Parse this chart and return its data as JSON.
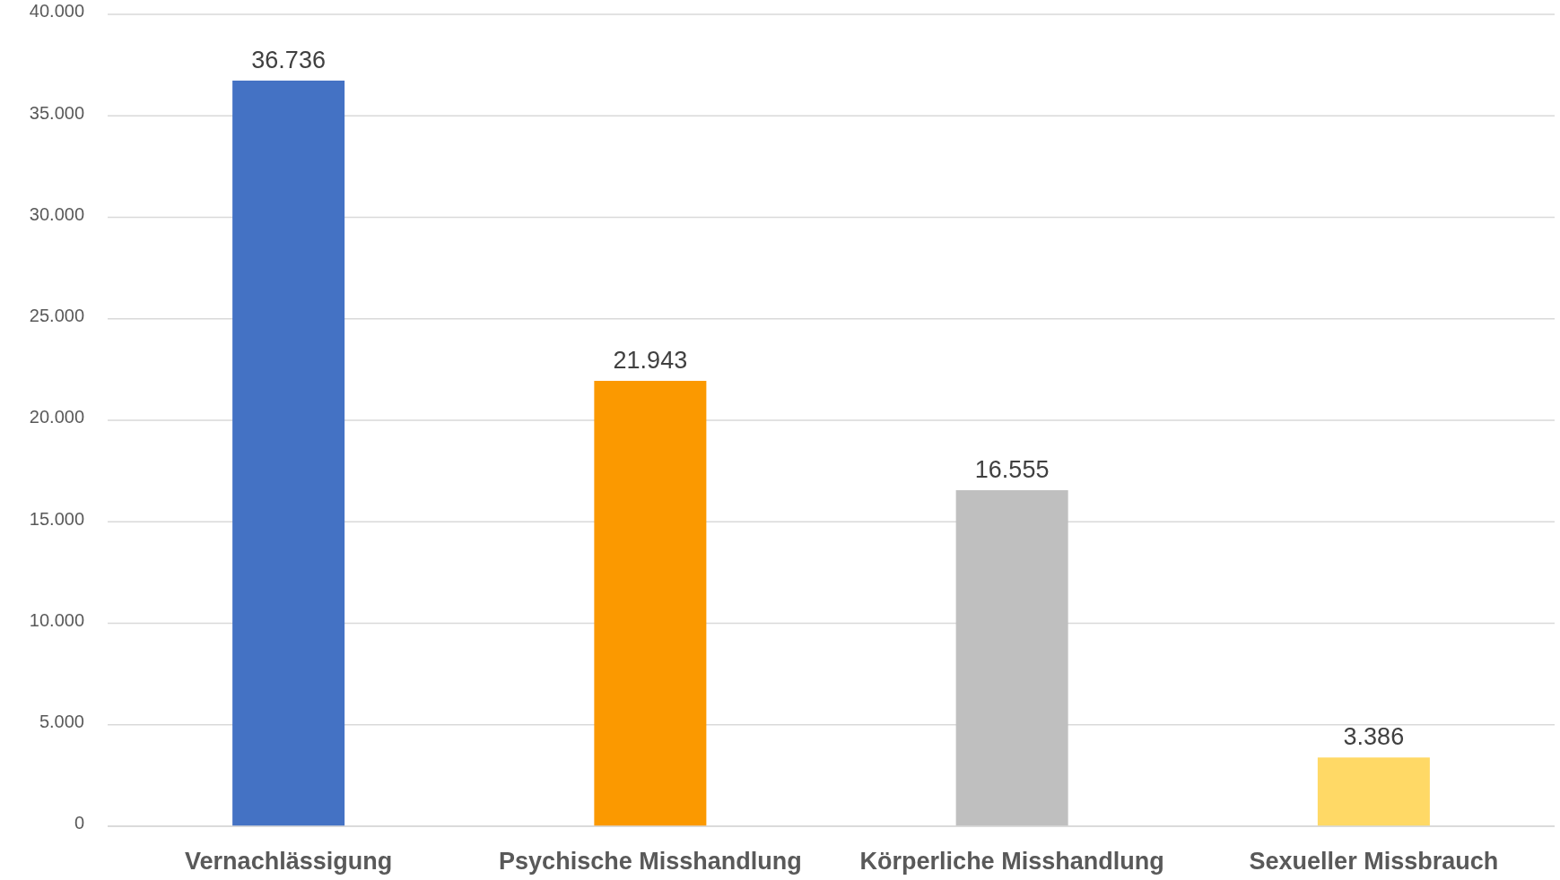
{
  "chart_data": {
    "type": "bar",
    "categories": [
      "Vernachlässigung",
      "Psychische Misshandlung",
      "Körperliche Misshandlung",
      "Sexueller Missbrauch"
    ],
    "values": [
      36736,
      21943,
      16555,
      3386
    ],
    "colors": [
      "#4472c4",
      "#fb9900",
      "#bfbfbf",
      "#ffd966"
    ],
    "value_labels": [
      "36.736",
      "21.943",
      "16.555",
      "3.386"
    ],
    "ylim": [
      0,
      40000
    ],
    "yticks": [
      {
        "value": 0,
        "label": "0"
      },
      {
        "value": 5000,
        "label": "5.000"
      },
      {
        "value": 10000,
        "label": "10.000"
      },
      {
        "value": 15000,
        "label": "15.000"
      },
      {
        "value": 20000,
        "label": "20.000"
      },
      {
        "value": 25000,
        "label": "25.000"
      },
      {
        "value": 30000,
        "label": "30.000"
      },
      {
        "value": 35000,
        "label": "35.000"
      },
      {
        "value": 40000,
        "label": "40.000"
      }
    ],
    "grid": "y"
  }
}
